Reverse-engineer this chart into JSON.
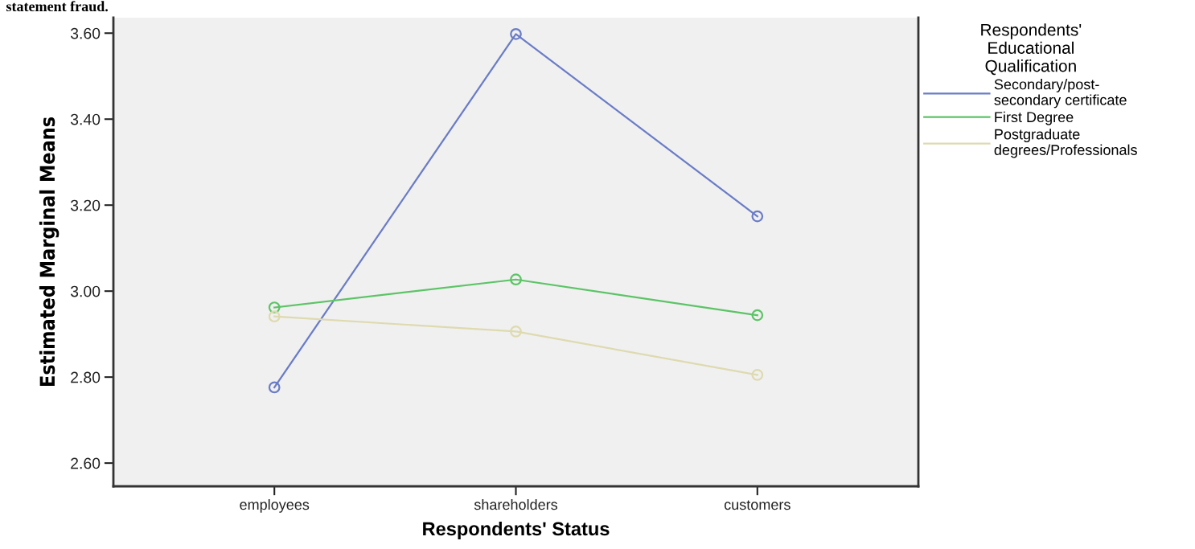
{
  "chart_data": {
    "type": "line",
    "xlabel": "Respondents' Status",
    "ylabel": "Estimated Marginal Means",
    "legend_title": "Respondents'\nEducational\nQualification",
    "annotations": [
      "statement fraud."
    ],
    "categories": [
      "employees",
      "shareholders",
      "customers"
    ],
    "series": [
      {
        "name": "Secondary/post-\nsecondary certificate",
        "color": "#6a7cc6",
        "values": [
          2.776,
          3.598,
          3.174
        ]
      },
      {
        "name": "First Degree",
        "color": "#5cc466",
        "values": [
          2.962,
          3.027,
          2.944
        ]
      },
      {
        "name": "Postgraduate\ndegrees/Professionals",
        "color": "#dedab0",
        "values": [
          2.941,
          2.906,
          2.805
        ]
      }
    ],
    "ylim": [
      2.546,
      3.636
    ],
    "yticks": [
      {
        "value": 2.6,
        "label": "2.60"
      },
      {
        "value": 2.8,
        "label": "2.80"
      },
      {
        "value": 3.0,
        "label": "3.00"
      },
      {
        "value": 3.2,
        "label": "3.20"
      },
      {
        "value": 3.4,
        "label": "3.40"
      },
      {
        "value": 3.6,
        "label": "3.60"
      }
    ],
    "grid": false,
    "legend": "top right",
    "marker": "circle",
    "line_style": "solid"
  }
}
